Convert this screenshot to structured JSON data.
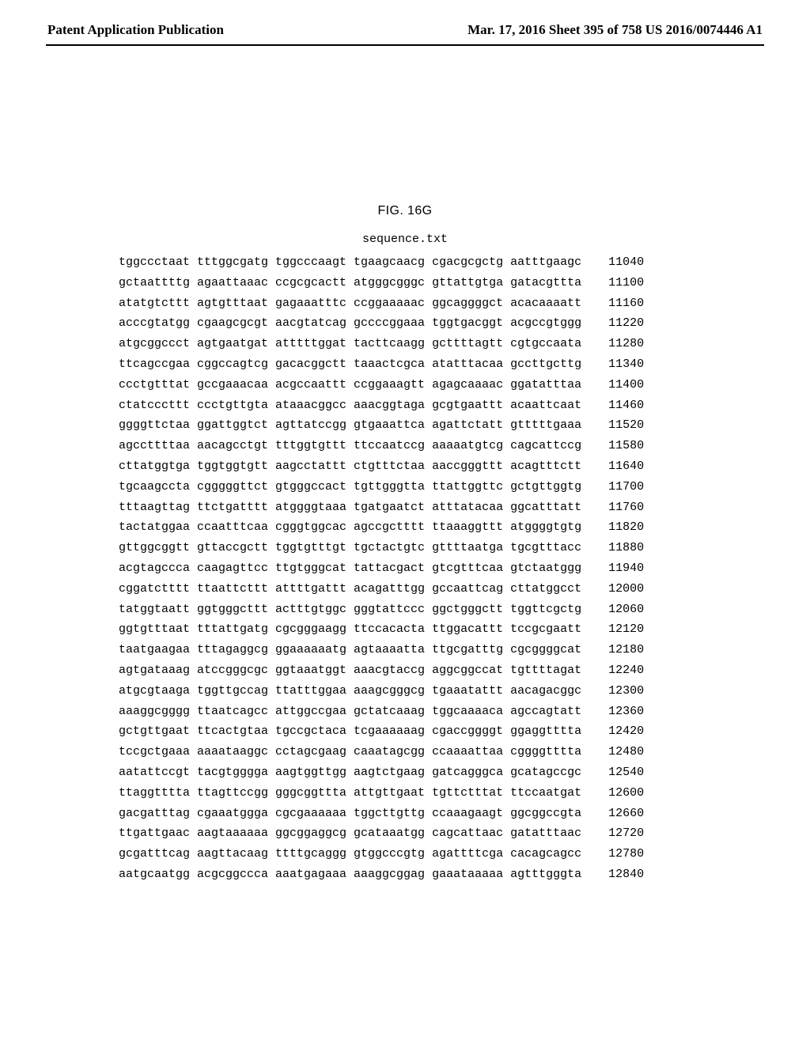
{
  "header": {
    "left": "Patent Application Publication",
    "right": "Mar. 17, 2016  Sheet 395 of 758   US 2016/0074446 A1"
  },
  "figure": {
    "title": "FIG. 16G",
    "subtitle": "sequence.txt"
  },
  "sequence": {
    "rows": [
      {
        "groups": [
          "tggccctaat",
          "tttggcgatg",
          "tggcccaagt",
          "tgaagcaacg",
          "cgacgcgctg",
          "aatttgaagc"
        ],
        "pos": "11040"
      },
      {
        "groups": [
          "gctaattttg",
          "agaattaaac",
          "ccgcgcactt",
          "atgggcgggc",
          "gttattgtga",
          "gatacgttta"
        ],
        "pos": "11100"
      },
      {
        "groups": [
          "atatgtcttt",
          "agtgtttaat",
          "gagaaatttc",
          "ccggaaaaac",
          "ggcaggggct",
          "acacaaaatt"
        ],
        "pos": "11160"
      },
      {
        "groups": [
          "acccgtatgg",
          "cgaagcgcgt",
          "aacgtatcag",
          "gccccggaaa",
          "tggtgacggt",
          "acgccgtggg"
        ],
        "pos": "11220"
      },
      {
        "groups": [
          "atgcggccct",
          "agtgaatgat",
          "atttttggat",
          "tacttcaagg",
          "gcttttagtt",
          "cgtgccaata"
        ],
        "pos": "11280"
      },
      {
        "groups": [
          "ttcagccgaa",
          "cggccagtcg",
          "gacacggctt",
          "taaactcgca",
          "atatttacaa",
          "gccttgcttg"
        ],
        "pos": "11340"
      },
      {
        "groups": [
          "ccctgtttat",
          "gccgaaacaa",
          "acgccaattt",
          "ccggaaagtt",
          "agagcaaaac",
          "ggatatttaa"
        ],
        "pos": "11400"
      },
      {
        "groups": [
          "ctatcccttt",
          "ccctgttgta",
          "ataaacggcc",
          "aaacggtaga",
          "gcgtgaattt",
          "acaattcaat"
        ],
        "pos": "11460"
      },
      {
        "groups": [
          "ggggttctaa",
          "ggattggtct",
          "agttatccgg",
          "gtgaaattca",
          "agattctatt",
          "gtttttgaaa"
        ],
        "pos": "11520"
      },
      {
        "groups": [
          "agccttttaa",
          "aacagcctgt",
          "tttggtgttt",
          "ttccaatccg",
          "aaaaatgtcg",
          "cagcattccg"
        ],
        "pos": "11580"
      },
      {
        "groups": [
          "cttatggtga",
          "tggtggtgtt",
          "aagcctattt",
          "ctgtttctaa",
          "aaccgggttt",
          "acagtttctt"
        ],
        "pos": "11640"
      },
      {
        "groups": [
          "tgcaagccta",
          "cgggggttct",
          "gtgggccact",
          "tgttgggtta",
          "ttattggttc",
          "gctgttggtg"
        ],
        "pos": "11700"
      },
      {
        "groups": [
          "tttaagttag",
          "ttctgatttt",
          "atggggtaaa",
          "tgatgaatct",
          "atttatacaa",
          "ggcatttatt"
        ],
        "pos": "11760"
      },
      {
        "groups": [
          "tactatggaa",
          "ccaatttcaa",
          "cgggtggcac",
          "agccgctttt",
          "ttaaaggttt",
          "atggggtgtg"
        ],
        "pos": "11820"
      },
      {
        "groups": [
          "gttggcggtt",
          "gttaccgctt",
          "tggtgtttgt",
          "tgctactgtc",
          "gttttaatga",
          "tgcgtttacc"
        ],
        "pos": "11880"
      },
      {
        "groups": [
          "acgtagccca",
          "caagagttcc",
          "ttgtgggcat",
          "tattacgact",
          "gtcgtttcaa",
          "gtctaatggg"
        ],
        "pos": "11940"
      },
      {
        "groups": [
          "cggatctttt",
          "ttaattcttt",
          "attttgattt",
          "acagatttgg",
          "gccaattcag",
          "cttatggcct"
        ],
        "pos": "12000"
      },
      {
        "groups": [
          "tatggtaatt",
          "ggtgggcttt",
          "actttgtggc",
          "gggtattccc",
          "ggctgggctt",
          "tggttcgctg"
        ],
        "pos": "12060"
      },
      {
        "groups": [
          "ggtgtttaat",
          "tttattgatg",
          "cgcgggaagg",
          "ttccacacta",
          "ttggacattt",
          "tccgcgaatt"
        ],
        "pos": "12120"
      },
      {
        "groups": [
          "taatgaagaa",
          "tttagaggcg",
          "ggaaaaaatg",
          "agtaaaatta",
          "ttgcgatttg",
          "cgcggggcat"
        ],
        "pos": "12180"
      },
      {
        "groups": [
          "agtgataaag",
          "atccgggcgc",
          "ggtaaatggt",
          "aaacgtaccg",
          "aggcggccat",
          "tgttttagat"
        ],
        "pos": "12240"
      },
      {
        "groups": [
          "atgcgtaaga",
          "tggttgccag",
          "ttatttggaa",
          "aaagcgggcg",
          "tgaaatattt",
          "aacagacggc"
        ],
        "pos": "12300"
      },
      {
        "groups": [
          "aaaggcgggg",
          "ttaatcagcc",
          "attggccgaa",
          "gctatcaaag",
          "tggcaaaaca",
          "agccagtatt"
        ],
        "pos": "12360"
      },
      {
        "groups": [
          "gctgttgaat",
          "ttcactgtaa",
          "tgccgctaca",
          "tcgaaaaaag",
          "cgaccggggt",
          "ggaggtttta"
        ],
        "pos": "12420"
      },
      {
        "groups": [
          "tccgctgaaa",
          "aaaataaggc",
          "cctagcgaag",
          "caaatagcgg",
          "ccaaaattaa",
          "cggggtttta"
        ],
        "pos": "12480"
      },
      {
        "groups": [
          "aatattccgt",
          "tacgtgggga",
          "aagtggttgg",
          "aagtctgaag",
          "gatcagggca",
          "gcatagccgc"
        ],
        "pos": "12540"
      },
      {
        "groups": [
          "ttaggtttta",
          "ttagttccgg",
          "gggcggttta",
          "attgttgaat",
          "tgttctttat",
          "ttccaatgat"
        ],
        "pos": "12600"
      },
      {
        "groups": [
          "gacgatttag",
          "cgaaatggga",
          "cgcgaaaaaa",
          "tggcttgttg",
          "ccaaagaagt",
          "ggcggccgta"
        ],
        "pos": "12660"
      },
      {
        "groups": [
          "ttgattgaac",
          "aagtaaaaaa",
          "ggcggaggcg",
          "gcataaatgg",
          "cagcattaac",
          "gatatttaac"
        ],
        "pos": "12720"
      },
      {
        "groups": [
          "gcgatttcag",
          "aagttacaag",
          "ttttgcaggg",
          "gtggcccgtg",
          "agattttcga",
          "cacagcagcc"
        ],
        "pos": "12780"
      },
      {
        "groups": [
          "aatgcaatgg",
          "acgcggccca",
          "aaatgagaaa",
          "aaaggcggag",
          "gaaataaaaa",
          "agtttgggta"
        ],
        "pos": "12840"
      }
    ]
  }
}
